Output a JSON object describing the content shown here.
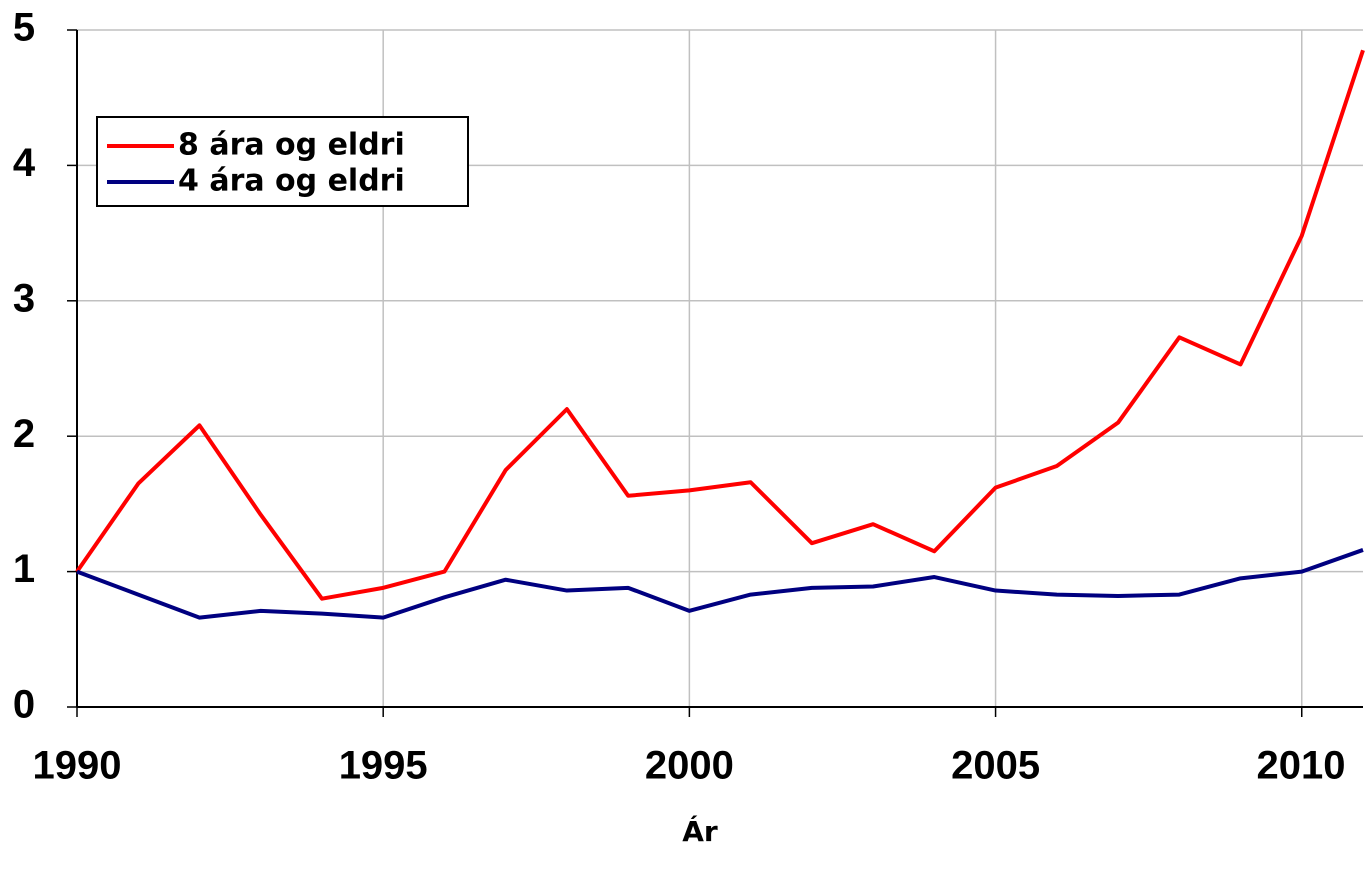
{
  "chart_data": {
    "type": "line",
    "x_label": "Ár",
    "x": [
      1990,
      1991,
      1992,
      1993,
      1994,
      1995,
      1996,
      1997,
      1998,
      1999,
      2000,
      2001,
      2002,
      2003,
      2004,
      2005,
      2006,
      2007,
      2008,
      2009,
      2010,
      2011
    ],
    "series": [
      {
        "name": "8 ára og eldri",
        "color": "#ff0000",
        "values": [
          1.0,
          1.65,
          2.08,
          1.42,
          0.8,
          0.88,
          1.0,
          1.75,
          2.2,
          1.56,
          1.6,
          1.66,
          1.21,
          1.35,
          1.15,
          1.62,
          1.78,
          2.1,
          2.73,
          2.53,
          3.48,
          4.85
        ]
      },
      {
        "name": "4 ára og eldri",
        "color": "#000080",
        "values": [
          1.0,
          0.83,
          0.66,
          0.71,
          0.69,
          0.66,
          0.81,
          0.94,
          0.86,
          0.88,
          0.71,
          0.83,
          0.88,
          0.89,
          0.96,
          0.86,
          0.83,
          0.82,
          0.83,
          0.95,
          1.0,
          1.16
        ]
      }
    ],
    "xlim": [
      1990,
      2011
    ],
    "xticks": [
      1990,
      1995,
      2000,
      2005,
      2010
    ],
    "ylim": [
      0,
      5
    ],
    "yticks": [
      0,
      1,
      2,
      3,
      4,
      5
    ],
    "grid": true,
    "legend": "upper left"
  }
}
